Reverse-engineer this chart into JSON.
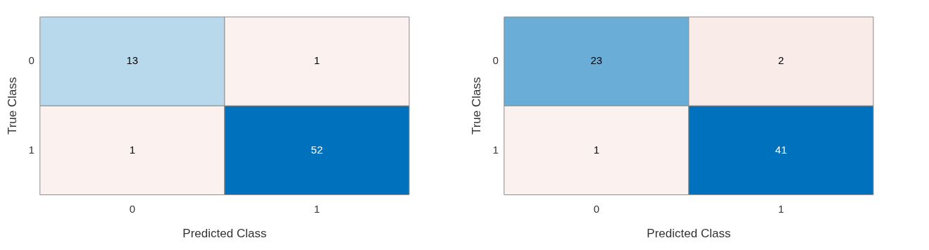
{
  "chart_data": [
    {
      "type": "heatmap",
      "categories": [
        "0",
        "1"
      ],
      "y_categories": [
        "0",
        "1"
      ],
      "cells": [
        [
          13,
          1
        ],
        [
          1,
          52
        ]
      ],
      "colors": [
        "#b8d8ec",
        "#fbf1ee",
        "#fbf1ee",
        "#0072bd"
      ],
      "xlabel": "Predicted Class",
      "ylabel": "True Class",
      "data_labels": true,
      "legend": false
    },
    {
      "type": "heatmap",
      "categories": [
        "0",
        "1"
      ],
      "y_categories": [
        "0",
        "1"
      ],
      "cells": [
        [
          23,
          2
        ],
        [
          1,
          41
        ]
      ],
      "colors": [
        "#6aaed8",
        "#f9ebe7",
        "#fbf1ee",
        "#0072bd"
      ],
      "xlabel": "Predicted Class",
      "ylabel": "True Class",
      "data_labels": true,
      "legend": false
    }
  ]
}
